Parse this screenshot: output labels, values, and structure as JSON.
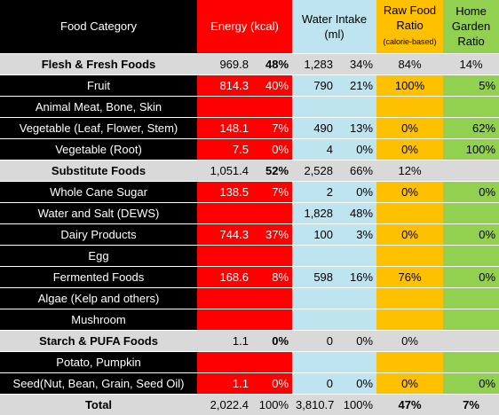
{
  "header": {
    "category": "Food Category",
    "energy": "Energy (kcal)",
    "water": "Water Intake (ml)",
    "raw": "Raw Food Ratio",
    "raw_note": "(calorie-based)",
    "garden": "Home Garden Ratio"
  },
  "rows": [
    {
      "label": "Flesh & Fresh Foods",
      "energy": "969.8",
      "energy_pct": "48%",
      "water": "1,283",
      "water_pct": "34%",
      "raw": "84%",
      "garden": "14%"
    },
    {
      "label": "Fruit",
      "energy": "814.3",
      "energy_pct": "40%",
      "water": "790",
      "water_pct": "21%",
      "raw": "100%",
      "garden": "5%"
    },
    {
      "label": "Animal Meat, Bone, Skin",
      "energy": "",
      "energy_pct": "",
      "water": "",
      "water_pct": "",
      "raw": "",
      "garden": ""
    },
    {
      "label": "Vegetable (Leaf, Flower, Stem)",
      "energy": "148.1",
      "energy_pct": "7%",
      "water": "490",
      "water_pct": "13%",
      "raw": "0%",
      "garden": "62%"
    },
    {
      "label": "Vegetable (Root)",
      "energy": "7.5",
      "energy_pct": "0%",
      "water": "4",
      "water_pct": "0%",
      "raw": "0%",
      "garden": "100%"
    },
    {
      "label": "Substitute Foods",
      "energy": "1,051.4",
      "energy_pct": "52%",
      "water": "2,528",
      "water_pct": "66%",
      "raw": "12%",
      "garden": ""
    },
    {
      "label": "Whole Cane Sugar",
      "energy": "138.5",
      "energy_pct": "7%",
      "water": "2",
      "water_pct": "0%",
      "raw": "0%",
      "garden": "0%"
    },
    {
      "label": "Water and Salt (DEWS)",
      "energy": "",
      "energy_pct": "",
      "water": "1,828",
      "water_pct": "48%",
      "raw": "",
      "garden": ""
    },
    {
      "label": "Dairy Products",
      "energy": "744.3",
      "energy_pct": "37%",
      "water": "100",
      "water_pct": "3%",
      "raw": "0%",
      "garden": "0%"
    },
    {
      "label": "Egg",
      "energy": "",
      "energy_pct": "",
      "water": "",
      "water_pct": "",
      "raw": "",
      "garden": ""
    },
    {
      "label": "Fermented Foods",
      "energy": "168.6",
      "energy_pct": "8%",
      "water": "598",
      "water_pct": "16%",
      "raw": "76%",
      "garden": "0%"
    },
    {
      "label": "Algae (Kelp and others)",
      "energy": "",
      "energy_pct": "",
      "water": "",
      "water_pct": "",
      "raw": "",
      "garden": ""
    },
    {
      "label": "Mushroom",
      "energy": "",
      "energy_pct": "",
      "water": "",
      "water_pct": "",
      "raw": "",
      "garden": ""
    },
    {
      "label": "Starch & PUFA Foods",
      "energy": "1.1",
      "energy_pct": "0%",
      "water": "0",
      "water_pct": "0%",
      "raw": "0%",
      "garden": ""
    },
    {
      "label": "Potato, Pumpkin",
      "energy": "",
      "energy_pct": "",
      "water": "",
      "water_pct": "",
      "raw": "",
      "garden": ""
    },
    {
      "label": "Seed(Nut, Bean, Grain, Seed Oil)",
      "energy": "1.1",
      "energy_pct": "0%",
      "water": "0",
      "water_pct": "0%",
      "raw": "0%",
      "garden": "0%"
    }
  ],
  "total": {
    "label": "Total",
    "energy": "2,022.4",
    "energy_pct": "100%",
    "water": "3,810.7",
    "water_pct": "100%",
    "raw": "47%",
    "garden": "7%"
  },
  "colors": {
    "black": "#000000",
    "gray": "#d9d9d9",
    "red": "#ff0000",
    "light_blue": "#bde4ef",
    "orange": "#ffc000",
    "green": "#92d050"
  }
}
